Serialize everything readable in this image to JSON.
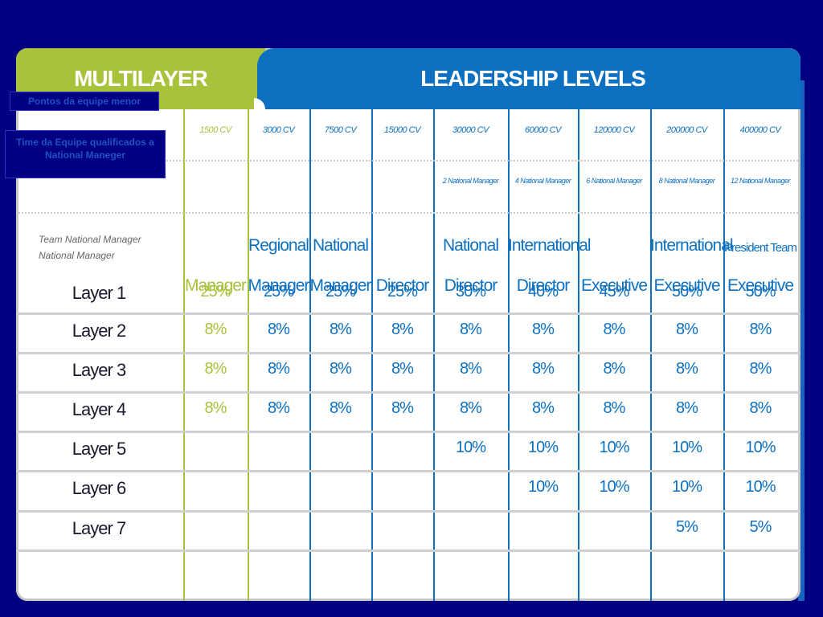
{
  "header": {
    "left_title": "MULTILAYER",
    "right_title": "LEADERSHIP LEVELS"
  },
  "overlays": {
    "points_label": "Pontos da equipe menor",
    "team_label": "Time da Equipe qualificados a National Maneger"
  },
  "team_requirement_label_lines": [
    "Team National Manager",
    "National Manager"
  ],
  "columns": [
    {
      "cv": "1500 CV",
      "req": "",
      "level_line1": "",
      "level_line2": "Manager"
    },
    {
      "cv": "3000 CV",
      "req": "",
      "level_line1": "Regional",
      "level_line2": "Manager"
    },
    {
      "cv": "7500 CV",
      "req": "",
      "level_line1": "National",
      "level_line2": "Manager"
    },
    {
      "cv": "15000 CV",
      "req": "",
      "level_line1": "",
      "level_line2": "Director"
    },
    {
      "cv": "30000 CV",
      "req": "2 National Manager",
      "level_line1": "National",
      "level_line2": "Director"
    },
    {
      "cv": "60000 CV",
      "req": "4 National Manager",
      "level_line1": "International",
      "level_line2": "Director"
    },
    {
      "cv": "120000 CV",
      "req": "6 National Manager",
      "level_line1": "",
      "level_line2": "Executive"
    },
    {
      "cv": "200000 CV",
      "req": "8 National Manager",
      "level_line1": "International",
      "level_line2": "Executive"
    },
    {
      "cv": "400000 CV",
      "req": "12 National Manager",
      "level_line1": "President Team",
      "level_line2": "Executive"
    }
  ],
  "rows": [
    {
      "label": "Layer 1",
      "values": [
        "25%",
        "25%",
        "25%",
        "25%",
        "30%",
        "40%",
        "45%",
        "50%",
        "50%"
      ]
    },
    {
      "label": "Layer 2",
      "values": [
        "8%",
        "8%",
        "8%",
        "8%",
        "8%",
        "8%",
        "8%",
        "8%",
        "8%"
      ]
    },
    {
      "label": "Layer 3",
      "values": [
        "8%",
        "8%",
        "8%",
        "8%",
        "8%",
        "8%",
        "8%",
        "8%",
        "8%"
      ]
    },
    {
      "label": "Layer 4",
      "values": [
        "8%",
        "8%",
        "8%",
        "8%",
        "8%",
        "8%",
        "8%",
        "8%",
        "8%"
      ]
    },
    {
      "label": "Layer 5",
      "values": [
        "",
        "",
        "",
        "",
        "10%",
        "10%",
        "10%",
        "10%",
        "10%"
      ]
    },
    {
      "label": "Layer 6",
      "values": [
        "",
        "",
        "",
        "",
        "",
        "10%",
        "10%",
        "10%",
        "10%"
      ]
    },
    {
      "label": "Layer 7",
      "values": [
        "",
        "",
        "",
        "",
        "",
        "",
        "",
        "5%",
        "5%"
      ]
    }
  ],
  "colors": {
    "background": "#000080",
    "green": "#a8c23c",
    "blue": "#0d70c0"
  }
}
